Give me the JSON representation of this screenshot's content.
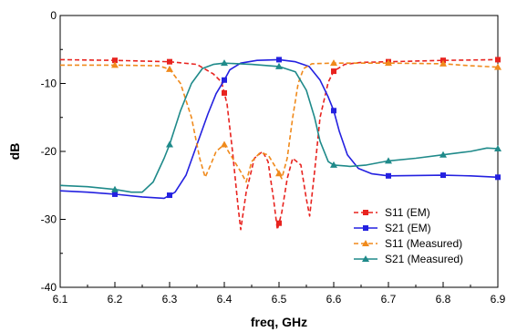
{
  "chart_data": {
    "type": "line",
    "title": "",
    "xlabel": "freq, GHz",
    "ylabel": "dB",
    "xlim": [
      6.1,
      6.9
    ],
    "ylim": [
      -40,
      0
    ],
    "x_ticks": [
      "6.1",
      "6.2",
      "6.3",
      "6.4",
      "6.5",
      "6.6",
      "6.7",
      "6.8",
      "6.9"
    ],
    "y_ticks": [
      "0",
      "-10",
      "-20",
      "-30",
      "-40"
    ],
    "grid": false,
    "legend_position": "bottom-right",
    "series": [
      {
        "name": "S11 (EM)",
        "color": "#e8231f",
        "dash": "dashed",
        "marker": "square",
        "points": [
          [
            6.1,
            -6.5
          ],
          [
            6.2,
            -6.6
          ],
          [
            6.3,
            -6.8
          ],
          [
            6.35,
            -7.2
          ],
          [
            6.38,
            -8.6
          ],
          [
            6.395,
            -9.8
          ],
          [
            6.405,
            -13
          ],
          [
            6.415,
            -20
          ],
          [
            6.425,
            -28
          ],
          [
            6.43,
            -31.5
          ],
          [
            6.44,
            -26
          ],
          [
            6.455,
            -21
          ],
          [
            6.47,
            -20
          ],
          [
            6.48,
            -21.5
          ],
          [
            6.49,
            -27
          ],
          [
            6.497,
            -31.5
          ],
          [
            6.505,
            -29
          ],
          [
            6.515,
            -24
          ],
          [
            6.525,
            -21
          ],
          [
            6.54,
            -22
          ],
          [
            6.55,
            -27
          ],
          [
            6.556,
            -29.5
          ],
          [
            6.565,
            -23
          ],
          [
            6.575,
            -15
          ],
          [
            6.59,
            -9.8
          ],
          [
            6.6,
            -8.2
          ],
          [
            6.62,
            -7.2
          ],
          [
            6.65,
            -6.9
          ],
          [
            6.7,
            -6.8
          ],
          [
            6.8,
            -6.6
          ],
          [
            6.9,
            -6.5
          ]
        ],
        "marker_x": [
          6.2,
          6.3,
          6.4,
          6.5,
          6.6,
          6.7,
          6.8,
          6.9
        ]
      },
      {
        "name": "S21 (EM)",
        "color": "#2421e0",
        "dash": "solid",
        "marker": "square",
        "points": [
          [
            6.1,
            -25.8
          ],
          [
            6.15,
            -26
          ],
          [
            6.2,
            -26.3
          ],
          [
            6.25,
            -26.7
          ],
          [
            6.29,
            -26.9
          ],
          [
            6.31,
            -26
          ],
          [
            6.33,
            -23.5
          ],
          [
            6.35,
            -19
          ],
          [
            6.37,
            -14.5
          ],
          [
            6.385,
            -11.5
          ],
          [
            6.4,
            -9.5
          ],
          [
            6.41,
            -8
          ],
          [
            6.43,
            -7
          ],
          [
            6.46,
            -6.6
          ],
          [
            6.5,
            -6.5
          ],
          [
            6.53,
            -6.8
          ],
          [
            6.555,
            -7.5
          ],
          [
            6.575,
            -9.5
          ],
          [
            6.59,
            -12
          ],
          [
            6.6,
            -14
          ],
          [
            6.61,
            -17
          ],
          [
            6.625,
            -20.5
          ],
          [
            6.645,
            -22.5
          ],
          [
            6.67,
            -23.3
          ],
          [
            6.7,
            -23.6
          ],
          [
            6.8,
            -23.5
          ],
          [
            6.85,
            -23.6
          ],
          [
            6.9,
            -23.8
          ]
        ],
        "marker_x": [
          6.2,
          6.3,
          6.4,
          6.5,
          6.6,
          6.7,
          6.8,
          6.9
        ]
      },
      {
        "name": "S11 (Measured)",
        "color": "#f08a1c",
        "dash": "dashed",
        "marker": "triangle",
        "points": [
          [
            6.1,
            -7.3
          ],
          [
            6.2,
            -7.3
          ],
          [
            6.28,
            -7.4
          ],
          [
            6.3,
            -7.9
          ],
          [
            6.32,
            -10
          ],
          [
            6.34,
            -15
          ],
          [
            6.355,
            -21
          ],
          [
            6.365,
            -23.8
          ],
          [
            6.375,
            -22
          ],
          [
            6.385,
            -20
          ],
          [
            6.4,
            -19
          ],
          [
            6.415,
            -21
          ],
          [
            6.43,
            -23
          ],
          [
            6.44,
            -24.5
          ],
          [
            6.45,
            -21.5
          ],
          [
            6.465,
            -20.2
          ],
          [
            6.48,
            -20.5
          ],
          [
            6.495,
            -22.5
          ],
          [
            6.505,
            -24
          ],
          [
            6.515,
            -21
          ],
          [
            6.525,
            -15
          ],
          [
            6.535,
            -10
          ],
          [
            6.545,
            -7.8
          ],
          [
            6.56,
            -7.1
          ],
          [
            6.6,
            -7
          ],
          [
            6.7,
            -7
          ],
          [
            6.8,
            -7.1
          ],
          [
            6.85,
            -7.4
          ],
          [
            6.9,
            -7.6
          ]
        ],
        "marker_x": [
          6.2,
          6.3,
          6.4,
          6.5,
          6.6,
          6.7,
          6.8,
          6.9
        ]
      },
      {
        "name": "S21 (Measured)",
        "color": "#1f8a8a",
        "dash": "solid",
        "marker": "triangle",
        "points": [
          [
            6.1,
            -25
          ],
          [
            6.15,
            -25.2
          ],
          [
            6.2,
            -25.6
          ],
          [
            6.23,
            -26
          ],
          [
            6.25,
            -26
          ],
          [
            6.27,
            -24.5
          ],
          [
            6.29,
            -21
          ],
          [
            6.3,
            -19
          ],
          [
            6.32,
            -14
          ],
          [
            6.34,
            -10
          ],
          [
            6.36,
            -7.8
          ],
          [
            6.38,
            -7.2
          ],
          [
            6.4,
            -7
          ],
          [
            6.45,
            -7.2
          ],
          [
            6.5,
            -7.5
          ],
          [
            6.53,
            -8.3
          ],
          [
            6.55,
            -11
          ],
          [
            6.565,
            -15
          ],
          [
            6.575,
            -18.5
          ],
          [
            6.59,
            -21.5
          ],
          [
            6.6,
            -22
          ],
          [
            6.63,
            -22.2
          ],
          [
            6.66,
            -22
          ],
          [
            6.7,
            -21.4
          ],
          [
            6.75,
            -21
          ],
          [
            6.8,
            -20.5
          ],
          [
            6.85,
            -20
          ],
          [
            6.88,
            -19.5
          ],
          [
            6.9,
            -19.6
          ]
        ],
        "marker_x": [
          6.2,
          6.3,
          6.4,
          6.5,
          6.6,
          6.7,
          6.8,
          6.9
        ]
      }
    ]
  }
}
